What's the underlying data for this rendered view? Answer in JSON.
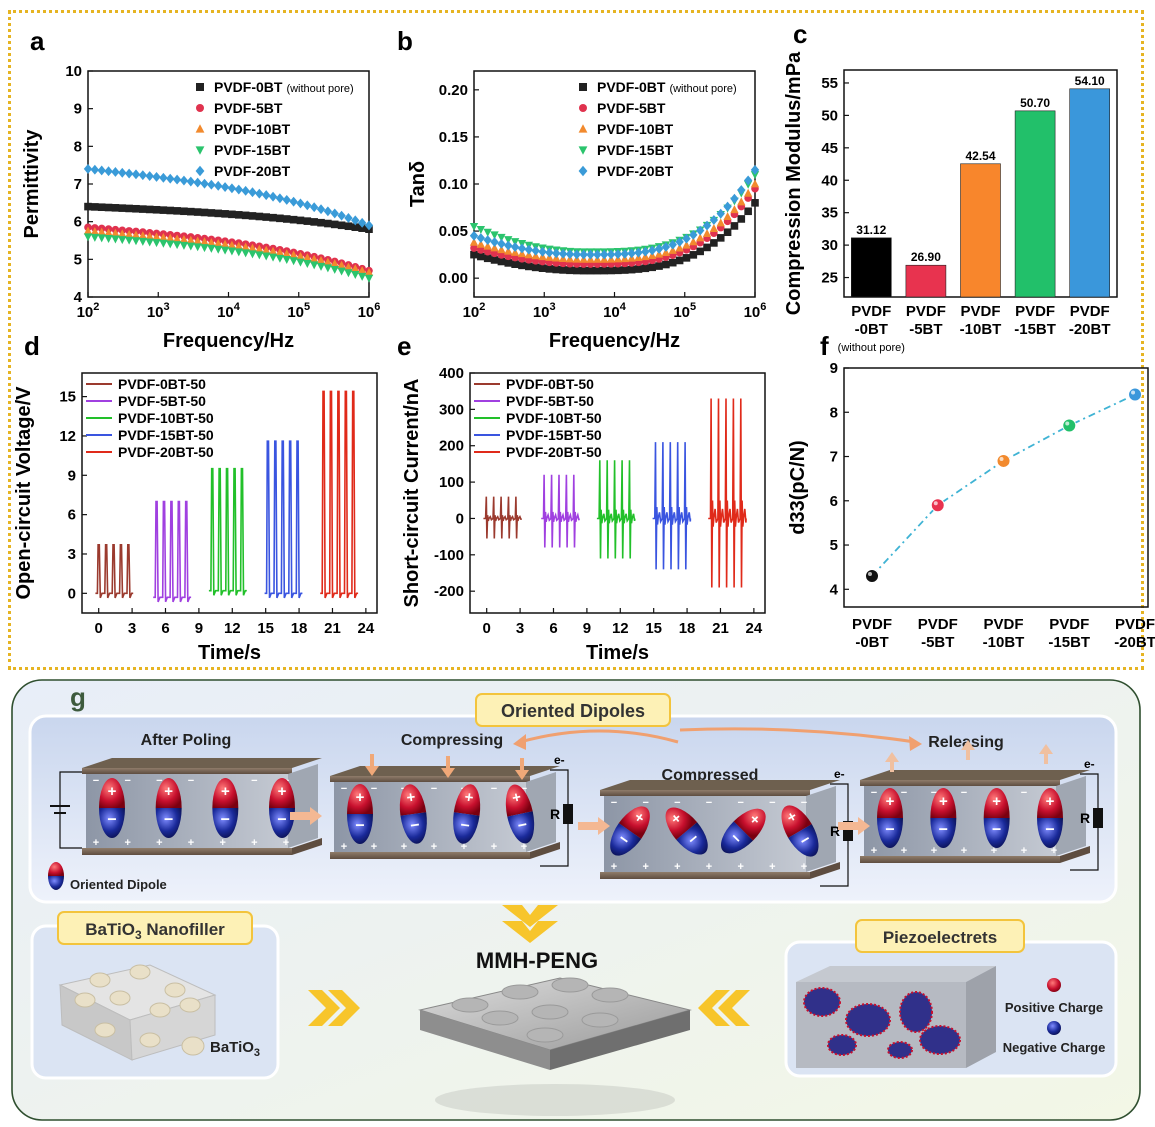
{
  "chart_data": [
    {
      "type": "scatter",
      "panel": "a",
      "xlabel": "Frequency/Hz",
      "ylabel": "Permittivity",
      "xscale": "log",
      "xlim": [
        100,
        1000000
      ],
      "ylim": [
        4,
        10
      ],
      "xticks": [
        "10^2",
        "10^3",
        "10^4",
        "10^5",
        "10^6"
      ],
      "yticks": [
        4,
        5,
        6,
        7,
        8,
        9,
        10
      ],
      "legend": "top-right",
      "legend_note": "(without pore)",
      "series": [
        {
          "name": "PVDF-0BT",
          "marker": "square",
          "color": "#222222",
          "start": 6.4,
          "end": 5.8
        },
        {
          "name": "PVDF-5BT",
          "marker": "circle",
          "color": "#e0324e",
          "start": 5.85,
          "end": 4.7
        },
        {
          "name": "PVDF-10BT",
          "marker": "triangle-up",
          "color": "#f28a2e",
          "start": 5.75,
          "end": 4.65
        },
        {
          "name": "PVDF-15BT",
          "marker": "triangle-down",
          "color": "#2bc46d",
          "start": 5.6,
          "end": 4.5
        },
        {
          "name": "PVDF-20BT",
          "marker": "diamond",
          "color": "#3a9bd8",
          "start": 7.4,
          "end": 5.9
        }
      ]
    },
    {
      "type": "scatter",
      "panel": "b",
      "xlabel": "Frequency/Hz",
      "ylabel": "Tanδ",
      "xscale": "log",
      "xlim": [
        100,
        1000000
      ],
      "ylim": [
        -0.02,
        0.22
      ],
      "xticks": [
        "10^2",
        "10^3",
        "10^4",
        "10^5",
        "10^6"
      ],
      "yticks": [
        "0.00",
        "0.05",
        "0.10",
        "0.15",
        "0.20"
      ],
      "legend": "top-right",
      "legend_note": "(without pore)",
      "series": [
        {
          "name": "PVDF-0BT",
          "marker": "square",
          "color": "#222222",
          "start": 0.025,
          "min": 0.008,
          "end": 0.08
        },
        {
          "name": "PVDF-5BT",
          "marker": "circle",
          "color": "#e0324e",
          "start": 0.032,
          "min": 0.015,
          "end": 0.095
        },
        {
          "name": "PVDF-10BT",
          "marker": "triangle-up",
          "color": "#f28a2e",
          "start": 0.038,
          "min": 0.02,
          "end": 0.1
        },
        {
          "name": "PVDF-15BT",
          "marker": "triangle-down",
          "color": "#2bc46d",
          "start": 0.055,
          "min": 0.028,
          "end": 0.11
        },
        {
          "name": "PVDF-20BT",
          "marker": "diamond",
          "color": "#3a9bd8",
          "start": 0.045,
          "min": 0.025,
          "end": 0.115
        }
      ]
    },
    {
      "type": "bar",
      "panel": "c",
      "ylabel": "Compression Modulus/mPa",
      "ylim": [
        22,
        57
      ],
      "yticks": [
        25,
        30,
        35,
        40,
        45,
        50,
        55
      ],
      "categories": [
        "PVDF\n-0BT",
        "PVDF\n-5BT",
        "PVDF\n-10BT",
        "PVDF\n-15BT",
        "PVDF\n-20BT"
      ],
      "values": [
        31.12,
        26.9,
        42.54,
        50.7,
        54.1
      ],
      "value_labels": [
        "31.12",
        "26.90",
        "42.54",
        "50.70",
        "54.10"
      ],
      "colors": [
        "#000000",
        "#e8334f",
        "#f8862c",
        "#22c06a",
        "#3a97db"
      ],
      "note": "(without pore)"
    },
    {
      "type": "line",
      "panel": "d",
      "xlabel": "Time/s",
      "ylabel": "Open-circuit Voltage/V",
      "xlim": [
        -1.5,
        25
      ],
      "ylim": [
        -1.5,
        16.8
      ],
      "xticks": [
        0,
        3,
        6,
        9,
        12,
        15,
        18,
        21,
        24
      ],
      "yticks": [
        0,
        3,
        6,
        9,
        12,
        15
      ],
      "legend": "top-left",
      "series": [
        {
          "name": "PVDF-0BT-50",
          "color": "#9b3a2e",
          "t_start": 0.0,
          "t_end": 3.0,
          "peak": 3.7,
          "base": 0.0
        },
        {
          "name": "PVDF-5BT-50",
          "color": "#a040e0",
          "t_start": 5.2,
          "t_end": 8.2,
          "peak": 7.0,
          "base": -0.3
        },
        {
          "name": "PVDF-10BT-50",
          "color": "#22c02a",
          "t_start": 10.2,
          "t_end": 13.2,
          "peak": 9.5,
          "base": 0.2
        },
        {
          "name": "PVDF-15BT-50",
          "color": "#3a55e0",
          "t_start": 15.2,
          "t_end": 18.2,
          "peak": 11.6,
          "base": 0.0
        },
        {
          "name": "PVDF-20BT-50",
          "color": "#e02a1a",
          "t_start": 20.2,
          "t_end": 23.2,
          "peak": 15.4,
          "base": 0.0
        }
      ]
    },
    {
      "type": "line",
      "panel": "e",
      "xlabel": "Time/s",
      "ylabel": "Short-circuit Current/nA",
      "xlim": [
        -1.5,
        25
      ],
      "ylim": [
        -260,
        400
      ],
      "xticks": [
        0,
        3,
        6,
        9,
        12,
        15,
        18,
        21,
        24
      ],
      "yticks": [
        -200,
        -100,
        0,
        100,
        200,
        300,
        400
      ],
      "legend": "top-left",
      "series": [
        {
          "name": "PVDF-0BT-50",
          "color": "#9b3a2e",
          "t_start": 0.0,
          "t_end": 3.0,
          "pos": 60,
          "neg": -55
        },
        {
          "name": "PVDF-5BT-50",
          "color": "#a040e0",
          "t_start": 5.2,
          "t_end": 8.2,
          "pos": 120,
          "neg": -80
        },
        {
          "name": "PVDF-10BT-50",
          "color": "#22c02a",
          "t_start": 10.2,
          "t_end": 13.2,
          "pos": 160,
          "neg": -110
        },
        {
          "name": "PVDF-15BT-50",
          "color": "#3a55e0",
          "t_start": 15.2,
          "t_end": 18.2,
          "pos": 210,
          "neg": -140
        },
        {
          "name": "PVDF-20BT-50",
          "color": "#e02a1a",
          "t_start": 20.2,
          "t_end": 23.2,
          "pos": 330,
          "neg": -190
        }
      ]
    },
    {
      "type": "line",
      "panel": "f",
      "ylabel": "d33(pC/N)",
      "ylim": [
        3.6,
        9
      ],
      "yticks": [
        4,
        5,
        6,
        7,
        8,
        9
      ],
      "categories": [
        "PVDF\n-0BT",
        "PVDF\n-5BT",
        "PVDF\n-10BT",
        "PVDF\n-15BT",
        "PVDF\n-20BT"
      ],
      "values": [
        4.3,
        5.9,
        6.9,
        7.7,
        8.4
      ],
      "colors": [
        "#111111",
        "#e8334f",
        "#f28a2e",
        "#22c06a",
        "#3a97db"
      ]
    }
  ],
  "panel_labels": [
    "a",
    "b",
    "c",
    "d",
    "e",
    "f",
    "g"
  ],
  "schematic": {
    "label": "g",
    "oriented_dipoles_title": "Oriented Dipoles",
    "stages": [
      "After Poling",
      "Compressing",
      "Compressed",
      "Releasing"
    ],
    "resistor_label": "R",
    "electron_label": "e-",
    "dipole_legend": "Oriented Dipole",
    "nanofiller_title": "BaTiO3 Nanofiller",
    "nanofiller_label": "BaTiO3",
    "device_title": "MMH-PENG",
    "piezo_title": "Piezoelectrets",
    "positive_charge": "Positive Charge",
    "negative_charge": "Negative Charge",
    "colors": {
      "accent": "#f3c43c",
      "dipole_pos": "#c8102e",
      "dipole_neg": "#1a2a9a",
      "chevron": "#f7c52b"
    }
  }
}
